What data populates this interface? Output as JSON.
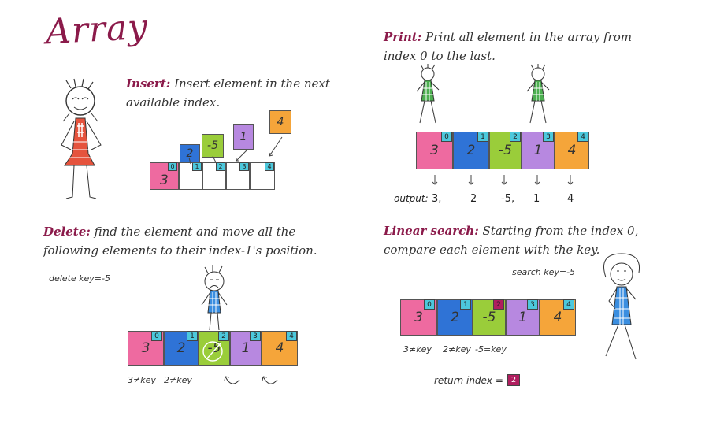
{
  "title": "Array",
  "colors": {
    "pink": "#ee6aa0",
    "blue": "#2f73d6",
    "green": "#9acd3a",
    "purple": "#b788e0",
    "orange": "#f5a53a",
    "index": "#4cc8dc",
    "highlight": "#b01e5f",
    "accent": "#8b1a4a"
  },
  "insert": {
    "heading": "Insert:",
    "text1": "Insert element in the next",
    "text2": "available index.",
    "index_labels": [
      "0",
      "1",
      "2",
      "3",
      "4"
    ],
    "base_value": "3",
    "floating": [
      "2",
      "-5",
      "1",
      "4"
    ]
  },
  "print": {
    "heading": "Print:",
    "text1": "Print all element in the array from",
    "text2": "index 0 to the last.",
    "values": [
      "3",
      "2",
      "-5",
      "1",
      "4"
    ],
    "indices": [
      "0",
      "1",
      "2",
      "3",
      "4"
    ],
    "output_label": "output:",
    "output_values": [
      "3,",
      "2",
      "-5,",
      "1",
      "4"
    ]
  },
  "delete": {
    "heading": "Delete:",
    "text1": "find the element and move all the",
    "text2": "following elements to their index-1's position.",
    "key_note": "delete key=-5",
    "values": [
      "3",
      "2",
      "-5",
      "1",
      "4"
    ],
    "indices": [
      "0",
      "1",
      "2",
      "3",
      "4"
    ],
    "compare1": "3≠key",
    "compare2": "2≠key"
  },
  "search": {
    "heading": "Linear search:",
    "text1": "Starting from the index 0,",
    "text2": "compare each element with the key.",
    "key_note": "search key=-5",
    "values": [
      "3",
      "2",
      "-5",
      "1",
      "4"
    ],
    "indices": [
      "0",
      "1",
      "2",
      "3",
      "4"
    ],
    "compare1": "3≠key",
    "compare2": "2≠key",
    "compare3": "-5=key",
    "return_label": "return index =",
    "return_value": "2"
  }
}
